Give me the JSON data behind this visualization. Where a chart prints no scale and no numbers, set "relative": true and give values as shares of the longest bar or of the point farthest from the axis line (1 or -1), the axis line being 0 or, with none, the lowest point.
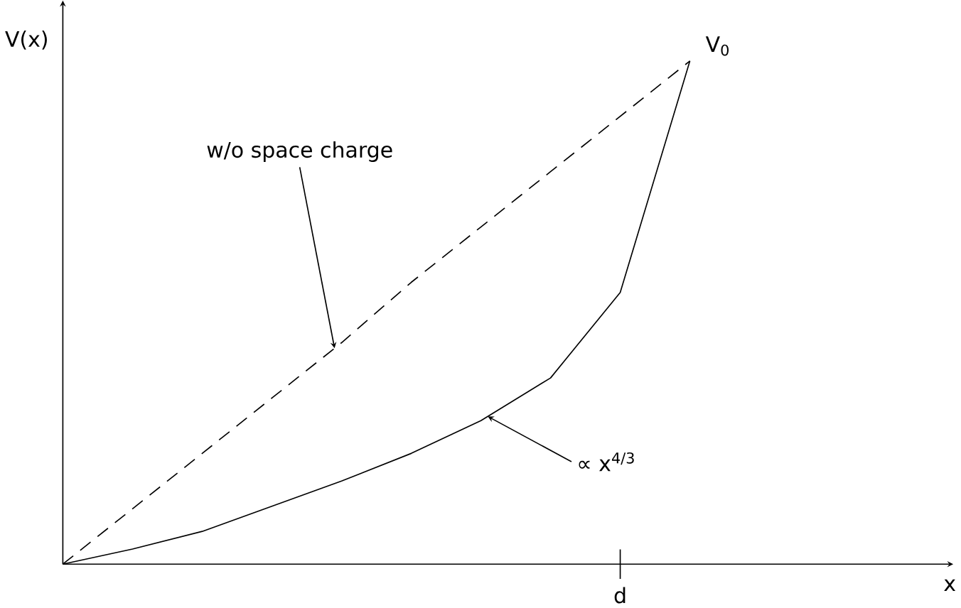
{
  "chart_data": {
    "type": "line",
    "relative": true,
    "ylabel": "V(x)",
    "categories": [
      null,
      null,
      null,
      null,
      null,
      null,
      null,
      null,
      null,
      null
    ],
    "series": [
      {
        "color": "#000000",
        "line_style": "dashed",
        "values": [
          0,
          0.11,
          0.22,
          0.33,
          0.44,
          0.56,
          0.67,
          0.78,
          0.89,
          1
        ]
      },
      {
        "color": "#000000",
        "line_style": "solid",
        "values": [
          0,
          0.03,
          0.065,
          0.115,
          0.165,
          0.22,
          0.285,
          0.37,
          0.54,
          1
        ]
      }
    ],
    "annotations": [
      "w/o space charge",
      "∝ x$^{4/3}$",
      "V$_{0}$",
      "d",
      "x"
    ]
  }
}
